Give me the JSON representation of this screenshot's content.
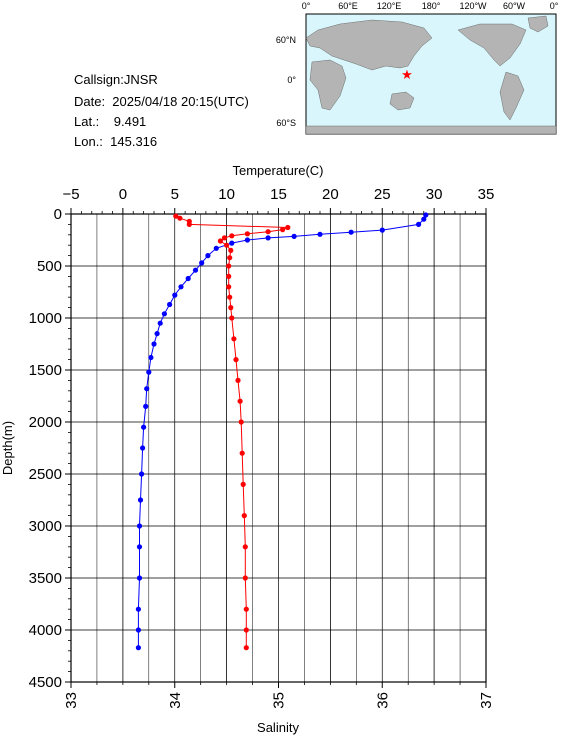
{
  "station": {
    "callsign": "Callsign:JNSR",
    "date": "Date:  2025/04/18 20:15(UTC)",
    "lat": "Lat.:    9.491",
    "lon": "Lon.:  145.316"
  },
  "map": {
    "lon_labels": [
      "0°",
      "60°E",
      "120°E",
      "180°",
      "120°W",
      "60°W",
      "0°"
    ],
    "lat_labels": [
      "60°N",
      "0°",
      "60°S"
    ],
    "marker_symbol": "star",
    "ocean_color": "#d8f6fb",
    "land_color": "#b4b4b4",
    "marker_color": "#ff0000"
  },
  "chart_data": {
    "type": "line",
    "top_axis": {
      "label": "Temperature(C)",
      "range": [
        -5,
        35
      ],
      "ticks": [
        "−5",
        "0",
        "5",
        "10",
        "15",
        "20",
        "25",
        "30",
        "35"
      ]
    },
    "bottom_axis": {
      "label": "Salinity",
      "range": [
        33,
        37
      ],
      "ticks": [
        "33",
        "34",
        "35",
        "36",
        "37"
      ]
    },
    "y_axis": {
      "label": "Depth(m)",
      "range": [
        0,
        4500
      ],
      "inverted": true,
      "ticks": [
        "0",
        "500",
        "1000",
        "1500",
        "2000",
        "2500",
        "3000",
        "3500",
        "4000",
        "4500"
      ]
    },
    "grid": true,
    "series": [
      {
        "color": "#0000ff",
        "axis": "temperature",
        "points": [
          [
            29.2,
            10
          ],
          [
            29.0,
            50
          ],
          [
            28.5,
            100
          ],
          [
            25.0,
            155
          ],
          [
            22.0,
            175
          ],
          [
            19.0,
            195
          ],
          [
            16.5,
            215
          ],
          [
            14.0,
            230
          ],
          [
            12.0,
            250
          ],
          [
            10.5,
            280
          ],
          [
            9.0,
            330
          ],
          [
            8.2,
            400
          ],
          [
            7.6,
            470
          ],
          [
            7.0,
            540
          ],
          [
            6.3,
            620
          ],
          [
            5.6,
            700
          ],
          [
            5.0,
            780
          ],
          [
            4.5,
            870
          ],
          [
            4.0,
            960
          ],
          [
            3.6,
            1050
          ],
          [
            3.3,
            1150
          ],
          [
            3.0,
            1250
          ],
          [
            2.7,
            1380
          ],
          [
            2.5,
            1520
          ],
          [
            2.3,
            1680
          ],
          [
            2.2,
            1850
          ],
          [
            2.0,
            2050
          ],
          [
            1.9,
            2250
          ],
          [
            1.8,
            2500
          ],
          [
            1.7,
            2750
          ],
          [
            1.6,
            3000
          ],
          [
            1.6,
            3200
          ],
          [
            1.6,
            3500
          ],
          [
            1.5,
            3800
          ],
          [
            1.5,
            4000
          ],
          [
            1.5,
            4170
          ]
        ]
      },
      {
        "color": "#ff0000",
        "axis": "salinity",
        "points": [
          [
            34.01,
            20
          ],
          [
            34.05,
            40
          ],
          [
            34.14,
            70
          ],
          [
            34.14,
            100
          ],
          [
            35.09,
            130
          ],
          [
            35.04,
            150
          ],
          [
            34.9,
            170
          ],
          [
            34.7,
            190
          ],
          [
            34.55,
            210
          ],
          [
            34.48,
            230
          ],
          [
            34.44,
            260
          ],
          [
            34.5,
            300
          ],
          [
            34.54,
            350
          ],
          [
            34.53,
            420
          ],
          [
            34.52,
            500
          ],
          [
            34.52,
            600
          ],
          [
            34.52,
            700
          ],
          [
            34.53,
            800
          ],
          [
            34.54,
            900
          ],
          [
            34.55,
            1000
          ],
          [
            34.57,
            1200
          ],
          [
            34.59,
            1400
          ],
          [
            34.61,
            1600
          ],
          [
            34.63,
            1800
          ],
          [
            34.64,
            2000
          ],
          [
            34.65,
            2300
          ],
          [
            34.66,
            2600
          ],
          [
            34.67,
            2900
          ],
          [
            34.68,
            3200
          ],
          [
            34.68,
            3500
          ],
          [
            34.69,
            3800
          ],
          [
            34.69,
            4000
          ],
          [
            34.69,
            4170
          ]
        ]
      }
    ]
  }
}
